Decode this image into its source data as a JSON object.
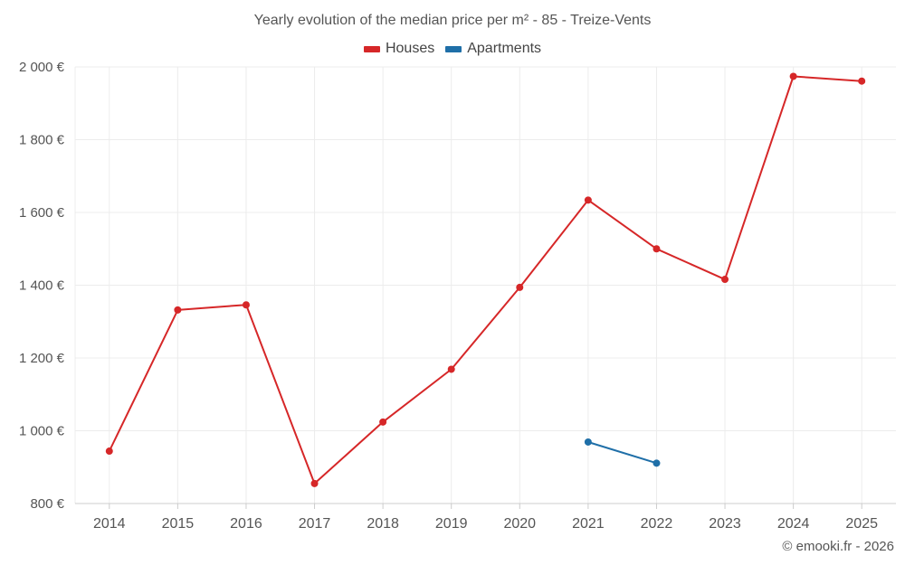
{
  "chart_data": {
    "type": "line",
    "title": "Yearly evolution of the median price per m² - 85 - Treize-Vents",
    "xlabel": "",
    "ylabel": "",
    "categories": [
      "2014",
      "2015",
      "2016",
      "2017",
      "2018",
      "2019",
      "2020",
      "2021",
      "2022",
      "2023",
      "2024",
      "2025"
    ],
    "ylim": [
      800,
      2000
    ],
    "yticks": [
      800,
      1000,
      1200,
      1400,
      1600,
      1800,
      2000
    ],
    "ytick_labels": [
      "800 €",
      "1 000 €",
      "1 200 €",
      "1 400 €",
      "1 600 €",
      "1 800 €",
      "2 000 €"
    ],
    "grid": true,
    "legend_position": "top-center",
    "series": [
      {
        "name": "Houses",
        "color": "#d62728",
        "values": [
          944,
          1332,
          1346,
          855,
          1024,
          1169,
          1394,
          1634,
          1500,
          1416,
          1974,
          1961
        ]
      },
      {
        "name": "Apartments",
        "color": "#1f6fa8",
        "values": [
          null,
          null,
          null,
          null,
          null,
          null,
          null,
          969,
          911,
          null,
          null,
          null
        ]
      }
    ]
  },
  "credit": "© emooki.fr - 2026"
}
